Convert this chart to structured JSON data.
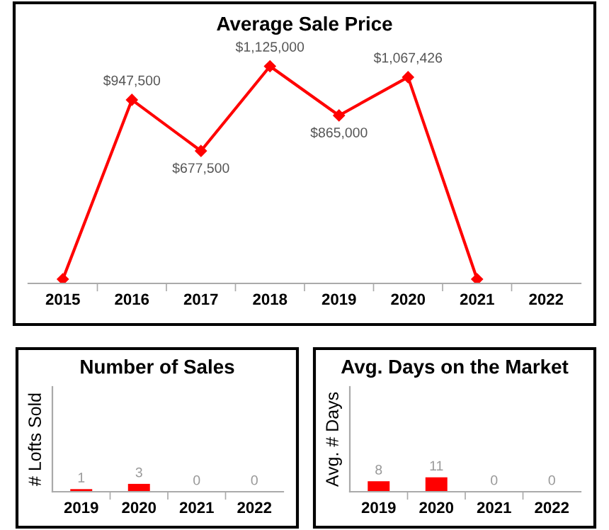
{
  "chart_data": [
    {
      "type": "line",
      "title": "Average Sale Price",
      "categories": [
        "2015",
        "2016",
        "2017",
        "2018",
        "2019",
        "2020",
        "2021",
        "2022"
      ],
      "series": [
        {
          "color": "#ff0000",
          "values": [
            0,
            947500,
            677500,
            1125000,
            865000,
            1067426,
            0,
            null
          ],
          "value_labels": [
            null,
            "$947,500",
            "$677,500",
            "$1,125,000",
            "$865,000",
            "$1,067,426",
            null,
            null
          ]
        }
      ],
      "tick_labels": "x",
      "marker": "diamond",
      "line_style": "solid",
      "grid": false,
      "legend": false
    },
    {
      "type": "bar",
      "title": "Number of Sales",
      "ylabel": "# Lofts Sold",
      "categories": [
        "2019",
        "2020",
        "2021",
        "2022"
      ],
      "values": [
        1,
        3,
        0,
        0
      ],
      "color": "#ff0000",
      "ylim": [
        0,
        40
      ],
      "tick_labels": "x",
      "data_labels": true,
      "grid": false,
      "legend": false
    },
    {
      "type": "bar",
      "title": "Avg. Days on the Market",
      "ylabel": "Avg. # Days",
      "categories": [
        "2019",
        "2020",
        "2021",
        "2022"
      ],
      "values": [
        8,
        11,
        0,
        0
      ],
      "color": "#ff0000",
      "ylim": [
        0,
        80
      ],
      "tick_labels": "x",
      "data_labels": true,
      "grid": false,
      "legend": false
    }
  ]
}
